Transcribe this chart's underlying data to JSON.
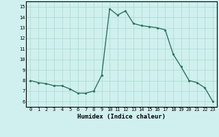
{
  "x": [
    0,
    1,
    2,
    3,
    4,
    5,
    6,
    7,
    8,
    9,
    10,
    11,
    12,
    13,
    14,
    15,
    16,
    17,
    18,
    19,
    20,
    21,
    22,
    23
  ],
  "y": [
    8.0,
    7.8,
    7.7,
    7.5,
    7.5,
    7.2,
    6.8,
    6.8,
    7.0,
    8.5,
    14.8,
    14.2,
    14.6,
    13.4,
    13.2,
    13.1,
    13.0,
    12.8,
    10.5,
    9.3,
    8.0,
    7.8,
    7.3,
    6.0
  ],
  "xlim": [
    -0.5,
    23.5
  ],
  "ylim": [
    5.5,
    15.5
  ],
  "yticks": [
    6,
    7,
    8,
    9,
    10,
    11,
    12,
    13,
    14,
    15
  ],
  "xticks": [
    0,
    1,
    2,
    3,
    4,
    5,
    6,
    7,
    8,
    9,
    10,
    11,
    12,
    13,
    14,
    15,
    16,
    17,
    18,
    19,
    20,
    21,
    22,
    23
  ],
  "xlabel": "Humidex (Indice chaleur)",
  "line_color": "#2e7060",
  "marker": "o",
  "marker_size": 1.8,
  "bg_color": "#cff0ee",
  "grid_color": "#aad8d0",
  "tick_fontsize": 5.0,
  "xlabel_fontsize": 6.5,
  "linewidth": 1.0
}
